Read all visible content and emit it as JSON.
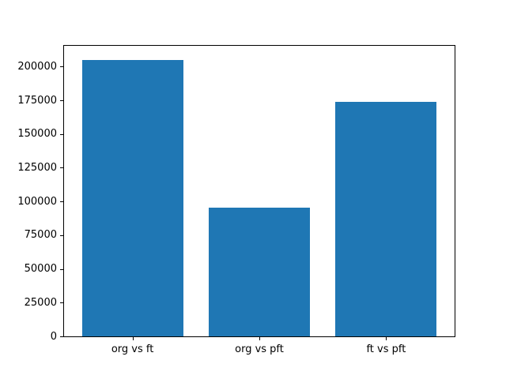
{
  "chart_data": {
    "type": "bar",
    "title": "",
    "xlabel": "",
    "ylabel": "",
    "categories": [
      "org vs ft",
      "org vs pft",
      "ft vs pft"
    ],
    "values": [
      205000,
      95500,
      174000
    ],
    "yticks": [
      0,
      25000,
      50000,
      75000,
      100000,
      125000,
      150000,
      175000,
      200000
    ],
    "ylim": [
      0,
      215400
    ],
    "xlim": [
      -0.54,
      2.54
    ],
    "bar_width": 0.8,
    "bar_color": "#1f77b4",
    "background_color": "#ffffff",
    "spine_color": "#000000",
    "text_color": "#000000",
    "grid": false,
    "legend_position": "none"
  }
}
